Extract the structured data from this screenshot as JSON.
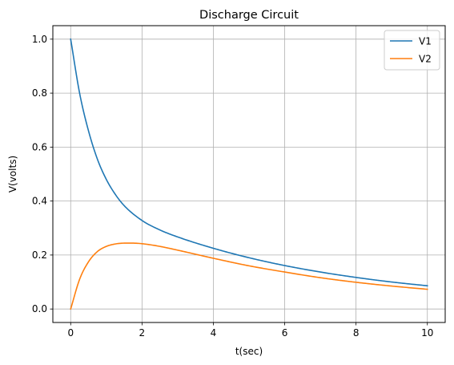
{
  "chart_data": {
    "type": "line",
    "title": "Discharge Circuit",
    "xlabel": "t(sec)",
    "ylabel": "V(volts)",
    "xlim": [
      -0.5,
      10.5
    ],
    "ylim": [
      -0.05,
      1.05
    ],
    "xticks": [
      0,
      2,
      4,
      6,
      8,
      10
    ],
    "xtick_labels": [
      "0",
      "2",
      "4",
      "6",
      "8",
      "10"
    ],
    "yticks": [
      0.0,
      0.2,
      0.4,
      0.6,
      0.8,
      1.0
    ],
    "ytick_labels": [
      "0.0",
      "0.2",
      "0.4",
      "0.6",
      "0.8",
      "1.0"
    ],
    "grid": true,
    "legend_position": "top-right",
    "colors": {
      "V1": "#1f77b4",
      "V2": "#ff7f0e",
      "grid": "#b0b0b0",
      "axes": "#000000"
    },
    "series": [
      {
        "name": "V1",
        "x": [
          0,
          0.25,
          0.5,
          0.75,
          1,
          1.25,
          1.5,
          2,
          2.5,
          3,
          4,
          5,
          6,
          7,
          8,
          9,
          10
        ],
        "y": [
          1.0,
          0.8,
          0.66,
          0.555,
          0.48,
          0.425,
          0.383,
          0.328,
          0.293,
          0.267,
          0.225,
          0.19,
          0.161,
          0.137,
          0.117,
          0.1,
          0.086
        ]
      },
      {
        "name": "V2",
        "x": [
          0,
          0.25,
          0.5,
          0.75,
          1,
          1.25,
          1.5,
          1.75,
          2,
          2.5,
          3,
          4,
          5,
          6,
          7,
          8,
          9,
          10
        ],
        "y": [
          0.0,
          0.11,
          0.175,
          0.213,
          0.232,
          0.241,
          0.244,
          0.244,
          0.242,
          0.232,
          0.218,
          0.188,
          0.16,
          0.137,
          0.116,
          0.099,
          0.085,
          0.073
        ]
      }
    ]
  }
}
